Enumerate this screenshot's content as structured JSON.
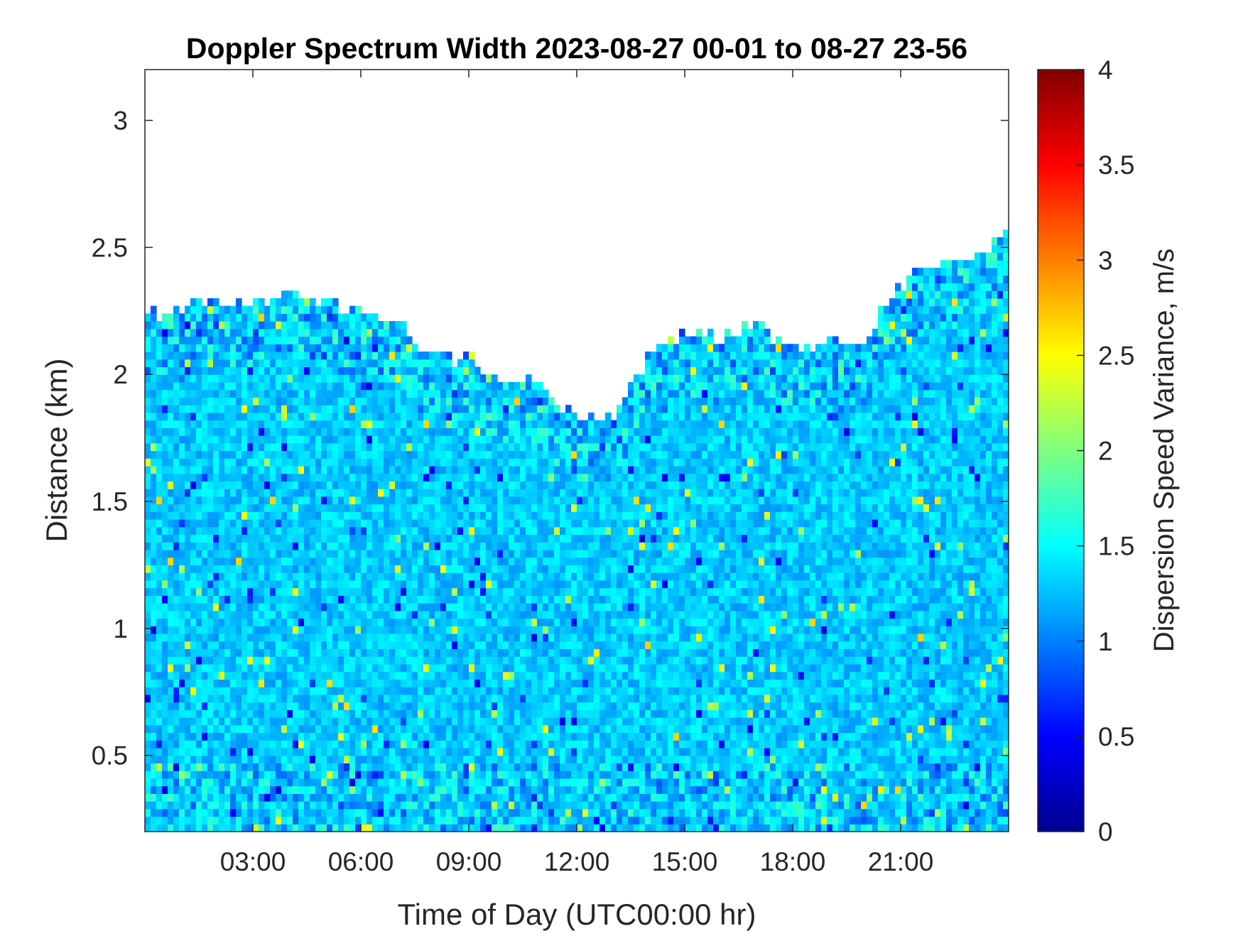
{
  "chart_data": {
    "type": "heatmap",
    "title": "Doppler Spectrum Width 2023-08-27 00-01 to 08-27 23-56",
    "xlabel": "Time of Day (UTC00:00 hr)",
    "ylabel": "Distance (km)",
    "xlim_hours": [
      0,
      24
    ],
    "ylim_km": [
      0.2,
      3.2
    ],
    "x_ticks": [
      {
        "hour": 3,
        "label": "03:00"
      },
      {
        "hour": 6,
        "label": "06:00"
      },
      {
        "hour": 9,
        "label": "09:00"
      },
      {
        "hour": 12,
        "label": "12:00"
      },
      {
        "hour": 15,
        "label": "15:00"
      },
      {
        "hour": 18,
        "label": "18:00"
      },
      {
        "hour": 21,
        "label": "21:00"
      }
    ],
    "y_ticks": [
      {
        "value": 0.5,
        "label": "0.5"
      },
      {
        "value": 1,
        "label": "1"
      },
      {
        "value": 1.5,
        "label": "1.5"
      },
      {
        "value": 2,
        "label": "2"
      },
      {
        "value": 2.5,
        "label": "2.5"
      },
      {
        "value": 3,
        "label": "3"
      }
    ],
    "colorbar": {
      "label": "Dispersion Speed Variance, m/s",
      "colormap": "jet",
      "clim": [
        0,
        4
      ],
      "ticks": [
        {
          "value": 0,
          "label": "0"
        },
        {
          "value": 0.5,
          "label": "0.5"
        },
        {
          "value": 1,
          "label": "1"
        },
        {
          "value": 1.5,
          "label": "1.5"
        },
        {
          "value": 2,
          "label": "2"
        },
        {
          "value": 2.5,
          "label": "2.5"
        },
        {
          "value": 3,
          "label": "3"
        },
        {
          "value": 3.5,
          "label": "3.5"
        },
        {
          "value": 4,
          "label": "4"
        }
      ]
    },
    "typical_value_m_s": 1.3,
    "data_top_km_by_hour": [
      {
        "hour": 0,
        "top_km": 2.22
      },
      {
        "hour": 1,
        "top_km": 2.24
      },
      {
        "hour": 2,
        "top_km": 2.27
      },
      {
        "hour": 3,
        "top_km": 2.27
      },
      {
        "hour": 4,
        "top_km": 2.3
      },
      {
        "hour": 5,
        "top_km": 2.25
      },
      {
        "hour": 6,
        "top_km": 2.23
      },
      {
        "hour": 7,
        "top_km": 2.2
      },
      {
        "hour": 8,
        "top_km": 2.07
      },
      {
        "hour": 9,
        "top_km": 2.05
      },
      {
        "hour": 10,
        "top_km": 1.98
      },
      {
        "hour": 11,
        "top_km": 1.95
      },
      {
        "hour": 12,
        "top_km": 1.82
      },
      {
        "hour": 13,
        "top_km": 1.83
      },
      {
        "hour": 14,
        "top_km": 2.07
      },
      {
        "hour": 15,
        "top_km": 2.15
      },
      {
        "hour": 16,
        "top_km": 2.13
      },
      {
        "hour": 17,
        "top_km": 2.2
      },
      {
        "hour": 18,
        "top_km": 2.07
      },
      {
        "hour": 19,
        "top_km": 2.1
      },
      {
        "hour": 20,
        "top_km": 2.13
      },
      {
        "hour": 21,
        "top_km": 2.35
      },
      {
        "hour": 22,
        "top_km": 2.42
      },
      {
        "hour": 23,
        "top_km": 2.45
      },
      {
        "hour": 24,
        "top_km": 2.55
      }
    ],
    "colors": {
      "axis": "#262626",
      "background": "#ffffff"
    }
  }
}
